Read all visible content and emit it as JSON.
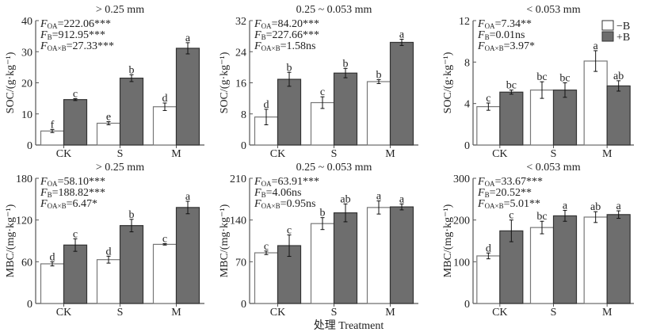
{
  "chart_data": [
    {
      "type": "bar",
      "title": "> 0.25 mm",
      "ylabel": "SOC/(g·kg⁻¹)",
      "ylim": [
        0,
        40
      ],
      "yticks": [
        0,
        10,
        20,
        30,
        40
      ],
      "categories": [
        "CK",
        "S",
        "M"
      ],
      "series": [
        {
          "name": "−B",
          "values": [
            4.5,
            7.0,
            12.3
          ],
          "errors": [
            0.5,
            0.5,
            1.2
          ],
          "letters": [
            "f",
            "e",
            "d"
          ]
        },
        {
          "name": "+B",
          "values": [
            14.6,
            21.5,
            31.1
          ],
          "errors": [
            0.3,
            1.1,
            1.8
          ],
          "letters": [
            "c",
            "b",
            "a"
          ]
        }
      ],
      "stats": [
        {
          "sub": "OA",
          "text": "=222.06***"
        },
        {
          "sub": "B",
          "text": "=912.95***"
        },
        {
          "sub": "OA×B",
          "text": "=27.33***"
        }
      ]
    },
    {
      "type": "bar",
      "title": "0.25 ~ 0.053 mm",
      "ylabel": "SOC/(g·kg⁻¹)",
      "ylim": [
        0,
        32
      ],
      "yticks": [
        0,
        8,
        16,
        24,
        32
      ],
      "categories": [
        "CK",
        "S",
        "M"
      ],
      "series": [
        {
          "name": "−B",
          "values": [
            7.2,
            10.9,
            16.3
          ],
          "errors": [
            2.0,
            1.5,
            0.5
          ],
          "letters": [
            "d",
            "c",
            "b"
          ]
        },
        {
          "name": "+B",
          "values": [
            16.9,
            18.5,
            26.4
          ],
          "errors": [
            1.8,
            1.2,
            0.8
          ],
          "letters": [
            "b",
            "b",
            "a"
          ]
        }
      ],
      "stats": [
        {
          "sub": "OA",
          "text": "=84.20***"
        },
        {
          "sub": "B",
          "text": "=227.66***"
        },
        {
          "sub": "OA×B",
          "text": "=1.58ns"
        }
      ]
    },
    {
      "type": "bar",
      "title": "< 0.053 mm",
      "ylabel": "SOC/(g·kg⁻¹)",
      "ylim": [
        0,
        12
      ],
      "yticks": [
        0,
        4,
        8,
        12
      ],
      "categories": [
        "CK",
        "S",
        "M"
      ],
      "series": [
        {
          "name": "−B",
          "values": [
            3.7,
            5.3,
            8.1
          ],
          "errors": [
            0.35,
            0.8,
            1.0
          ],
          "letters": [
            "c",
            "bc",
            "a"
          ]
        },
        {
          "name": "+B",
          "values": [
            5.1,
            5.3,
            5.7
          ],
          "errors": [
            0.2,
            0.7,
            0.5
          ],
          "letters": [
            "bc",
            "bc",
            "ab"
          ]
        }
      ],
      "stats": [
        {
          "sub": "OA",
          "text": "=7.34**"
        },
        {
          "sub": "B",
          "text": "=0.01ns"
        },
        {
          "sub": "OA×B",
          "text": "=3.97*"
        }
      ],
      "legend": {
        "position": "top-right",
        "items": [
          "−B",
          "+B"
        ]
      }
    },
    {
      "type": "bar",
      "title": "> 0.25 mm",
      "ylabel": "MBC/(mg·kg⁻¹)",
      "ylim": [
        0,
        180
      ],
      "yticks": [
        0,
        60,
        120,
        180
      ],
      "categories": [
        "CK",
        "S",
        "M"
      ],
      "series": [
        {
          "name": "−B",
          "values": [
            57,
            63,
            85
          ],
          "errors": [
            3,
            5,
            1
          ],
          "letters": [
            "d",
            "d",
            "c"
          ]
        },
        {
          "name": "+B",
          "values": [
            84,
            112,
            138
          ],
          "errors": [
            9,
            9,
            9
          ],
          "letters": [
            "c",
            "b",
            "a"
          ]
        }
      ],
      "stats": [
        {
          "sub": "OA",
          "text": "=58.10***"
        },
        {
          "sub": "B",
          "text": "=188.82***"
        },
        {
          "sub": "OA×B",
          "text": "=6.47*"
        }
      ]
    },
    {
      "type": "bar",
      "title": "0.25 ~ 0.053 mm",
      "ylabel": "MBC/(mg·kg⁻¹)",
      "ylim": [
        0,
        210
      ],
      "yticks": [
        0,
        70,
        140,
        210
      ],
      "categories": [
        "CK",
        "S",
        "M"
      ],
      "series": [
        {
          "name": "−B",
          "values": [
            85,
            134,
            161
          ],
          "errors": [
            3,
            10,
            11
          ],
          "letters": [
            "c",
            "b",
            "a"
          ]
        },
        {
          "name": "+B",
          "values": [
            97,
            152,
            162
          ],
          "errors": [
            18,
            15,
            5
          ],
          "letters": [
            "c",
            "ab",
            "a"
          ]
        }
      ],
      "stats": [
        {
          "sub": "OA",
          "text": "=63.91***"
        },
        {
          "sub": "B",
          "text": "=4.06ns"
        },
        {
          "sub": "OA×B",
          "text": "=0.95ns"
        }
      ]
    },
    {
      "type": "bar",
      "title": "< 0.053 mm",
      "ylabel": "MBC/(mg·kg⁻¹)",
      "ylim": [
        0,
        300
      ],
      "yticks": [
        0,
        100,
        200,
        300
      ],
      "categories": [
        "CK",
        "S",
        "M"
      ],
      "series": [
        {
          "name": "−B",
          "values": [
            114,
            182,
            207
          ],
          "errors": [
            7,
            15,
            13
          ],
          "letters": [
            "d",
            "bc",
            "ab"
          ]
        },
        {
          "name": "+B",
          "values": [
            174,
            210,
            213
          ],
          "errors": [
            26,
            13,
            9
          ],
          "letters": [
            "c",
            "a",
            "a"
          ]
        }
      ],
      "stats": [
        {
          "sub": "OA",
          "text": "=33.67***"
        },
        {
          "sub": "B",
          "text": "=20.52**"
        },
        {
          "sub": "OA×B",
          "text": "=5.01**"
        }
      ]
    }
  ],
  "xlabel": "处理 Treatment",
  "colors": {
    "minusB": "#ffffff",
    "plusB": "#6e6e6e",
    "axis": "#555555"
  }
}
